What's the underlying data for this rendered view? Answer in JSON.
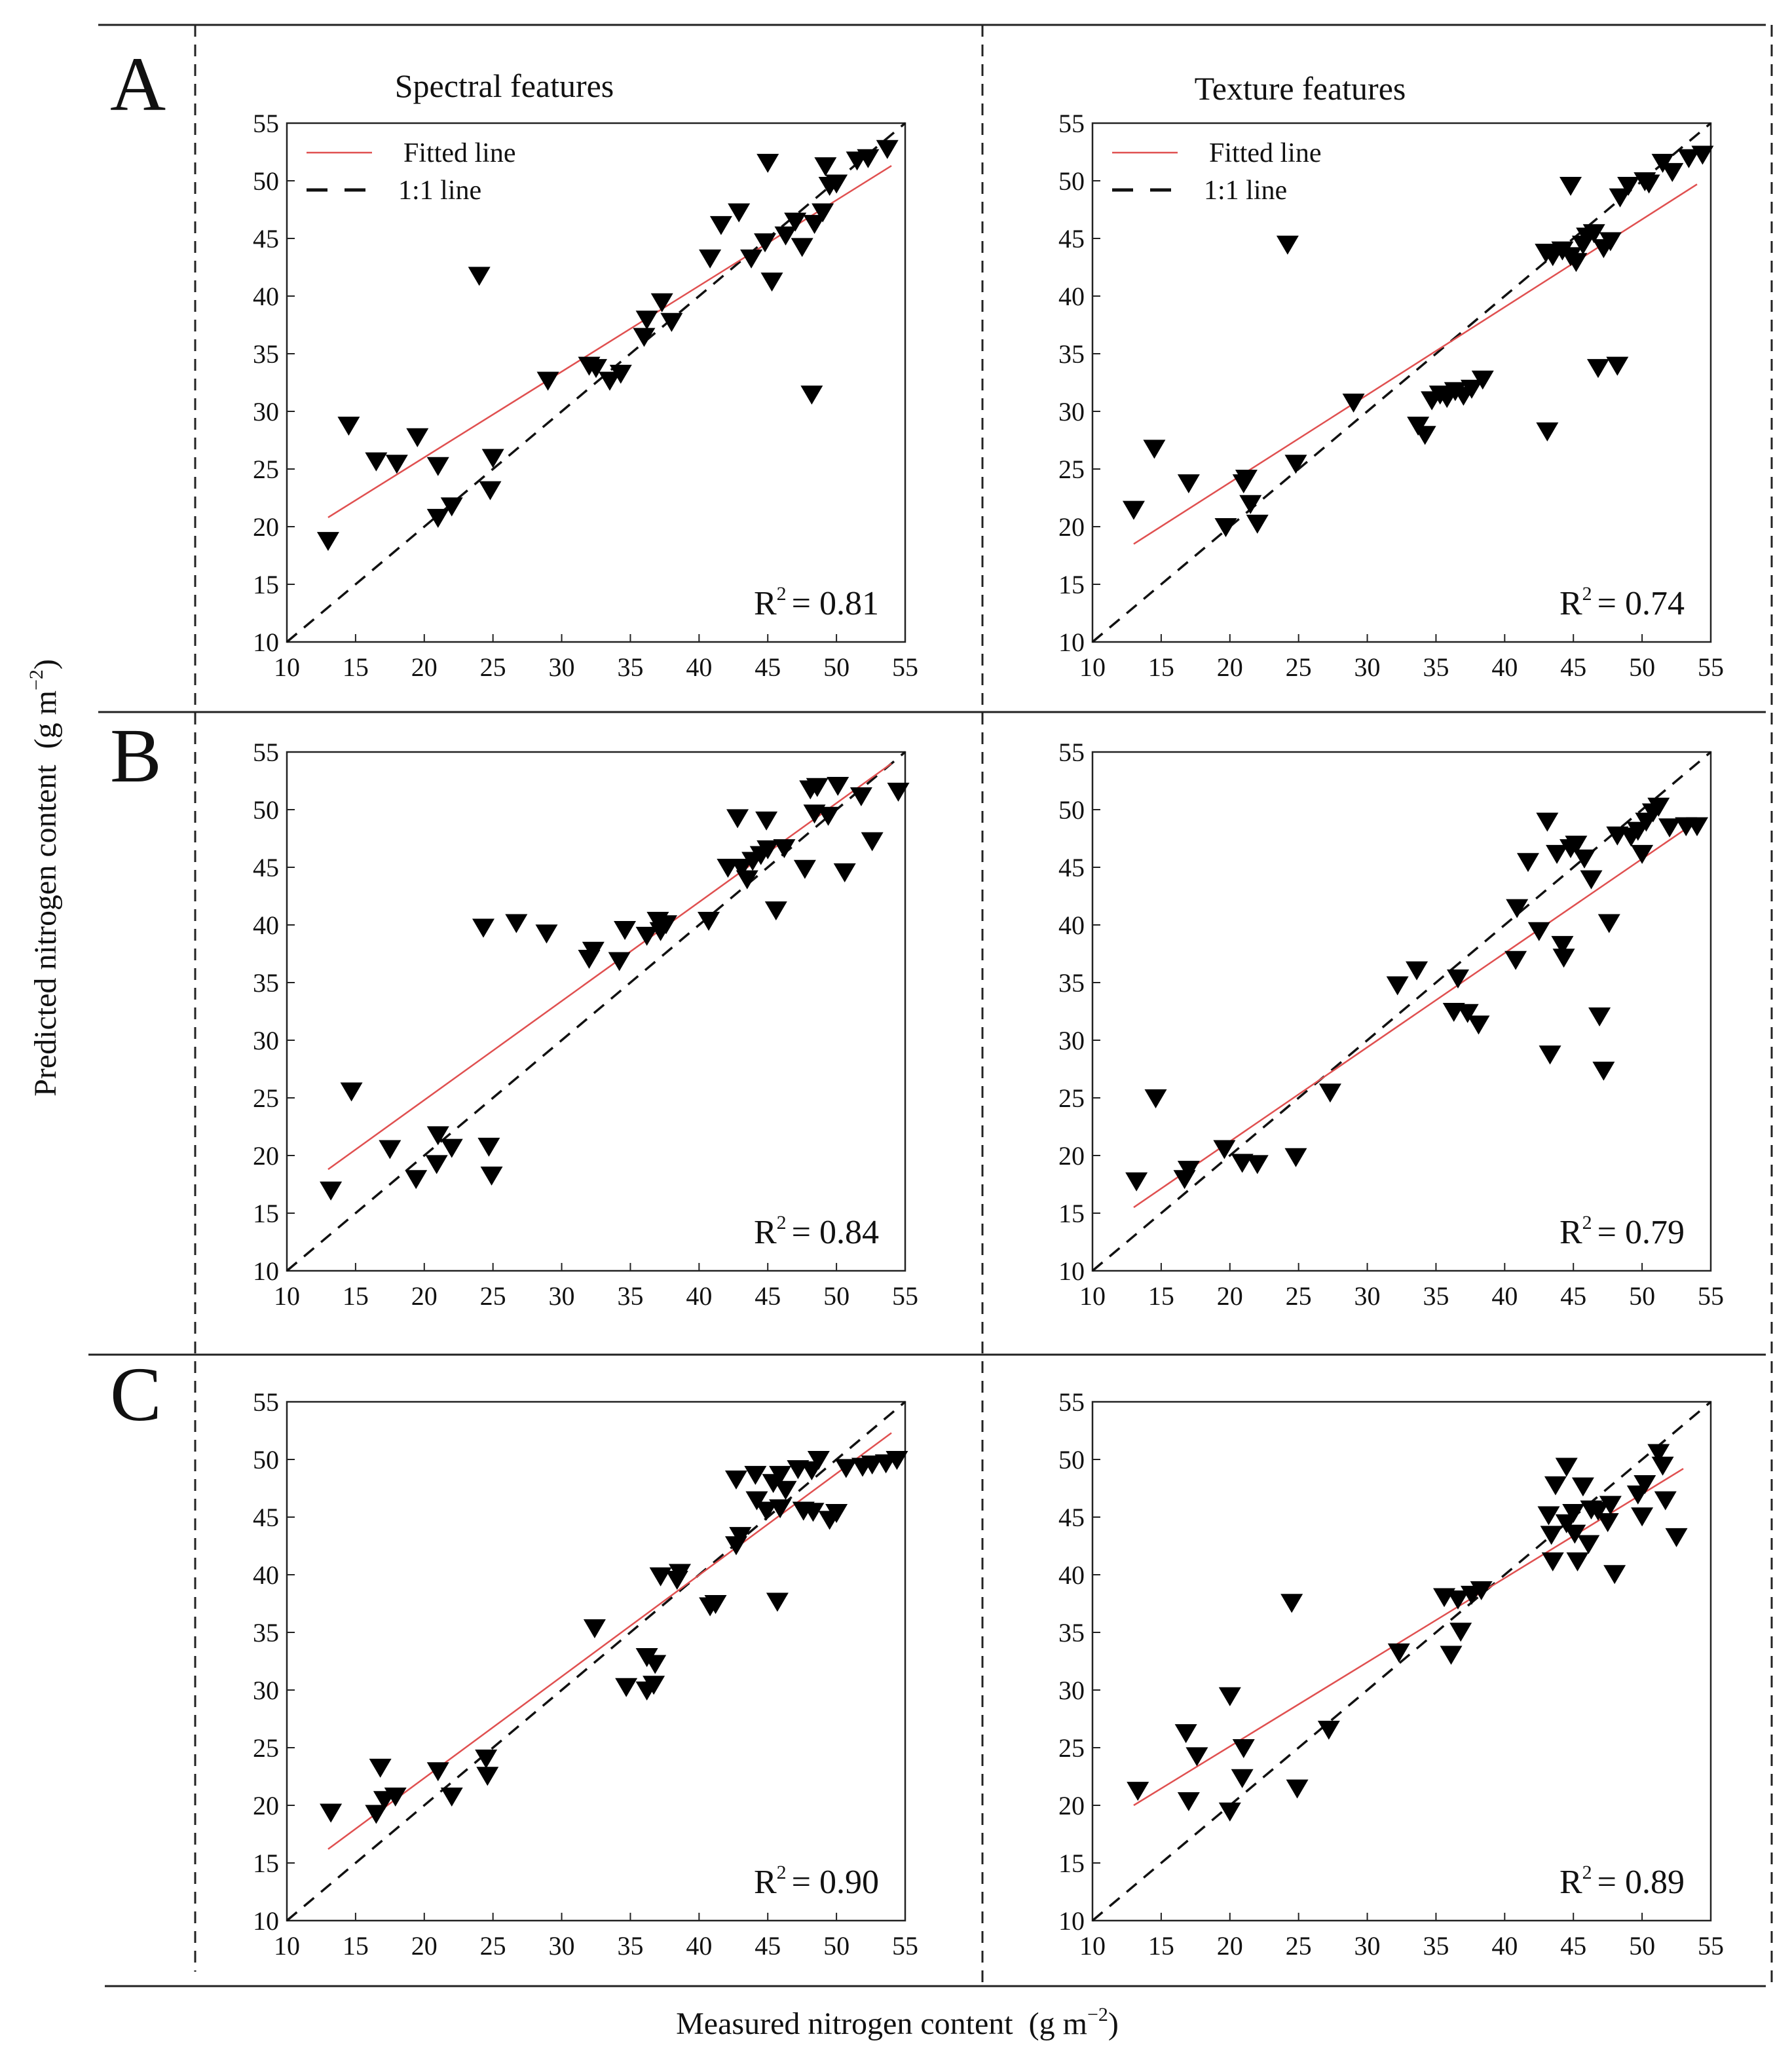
{
  "figure": {
    "ylabel": "Predicted nitrogen content",
    "ylabel_unit": "(g m",
    "ylabel_unit_exp": "−2",
    "ylabel_unit_close": ")",
    "xlabel": "Measured nitrogen content",
    "xlabel_unit": "(g m",
    "xlabel_unit_exp": "−2",
    "xlabel_unit_close": ")",
    "columns": [
      "Spectral features",
      "Texture features"
    ],
    "rows": [
      "A",
      "B",
      "C"
    ],
    "legend": {
      "fitted": "Fitted line",
      "identity": "1:1 line"
    },
    "colors": {
      "fitted_line": "#e05050",
      "identity_line": "#111111",
      "marker": "#000000"
    }
  },
  "chart_data": [
    {
      "type": "scatter",
      "row": "A",
      "column": "Spectral features",
      "xlim": [
        10,
        55
      ],
      "ylim": [
        10,
        55
      ],
      "ticks": [
        10,
        15,
        20,
        25,
        30,
        35,
        40,
        45,
        50,
        55
      ],
      "r2_label": "R",
      "r2_exp": "2",
      "r2_value": "= 0.81",
      "fitted_line": [
        [
          13,
          20.8
        ],
        [
          54,
          51.3
        ]
      ],
      "points": [
        [
          13,
          18.8
        ],
        [
          14.5,
          28.8
        ],
        [
          16.5,
          25.7
        ],
        [
          18,
          25.5
        ],
        [
          19.5,
          27.8
        ],
        [
          21,
          25.3
        ],
        [
          21,
          20.8
        ],
        [
          22,
          21.8
        ],
        [
          24,
          41.8
        ],
        [
          24.8,
          23.2
        ],
        [
          25,
          26
        ],
        [
          29,
          32.7
        ],
        [
          32,
          34
        ],
        [
          32.5,
          33.8
        ],
        [
          33.5,
          32.7
        ],
        [
          34.3,
          33.3
        ],
        [
          36,
          36.5
        ],
        [
          36.2,
          38
        ],
        [
          37.3,
          39.5
        ],
        [
          38,
          37.8
        ],
        [
          40.8,
          43.3
        ],
        [
          41.6,
          46.2
        ],
        [
          42.9,
          47.3
        ],
        [
          43.8,
          43.3
        ],
        [
          44.8,
          44.7
        ],
        [
          45,
          51.6
        ],
        [
          45.3,
          41.3
        ],
        [
          46.3,
          45.3
        ],
        [
          47,
          46.5
        ],
        [
          47.5,
          44.3
        ],
        [
          48.2,
          31.5
        ],
        [
          48.4,
          46.3
        ],
        [
          49,
          47.3
        ],
        [
          49.2,
          51.3
        ],
        [
          49.5,
          49.6
        ],
        [
          50,
          49.8
        ],
        [
          51.5,
          51.8
        ],
        [
          52.3,
          52
        ],
        [
          53.7,
          52.8
        ]
      ]
    },
    {
      "type": "scatter",
      "row": "A",
      "column": "Texture features",
      "xlim": [
        10,
        55
      ],
      "ylim": [
        10,
        55
      ],
      "ticks": [
        10,
        15,
        20,
        25,
        30,
        35,
        40,
        45,
        50,
        55
      ],
      "r2_label": "R",
      "r2_exp": "2",
      "r2_value": "= 0.74",
      "fitted_line": [
        [
          13,
          18.5
        ],
        [
          54,
          49.7
        ]
      ],
      "points": [
        [
          13,
          21.5
        ],
        [
          14.5,
          26.8
        ],
        [
          17,
          23.8
        ],
        [
          19.7,
          20
        ],
        [
          21,
          23.8
        ],
        [
          21.2,
          24.2
        ],
        [
          21.5,
          22
        ],
        [
          22,
          20.3
        ],
        [
          24.2,
          44.5
        ],
        [
          24.8,
          25.5
        ],
        [
          29,
          30.8
        ],
        [
          33.7,
          28.8
        ],
        [
          34.2,
          28
        ],
        [
          34.7,
          31
        ],
        [
          35.3,
          31.5
        ],
        [
          35.8,
          31.2
        ],
        [
          36.4,
          31.8
        ],
        [
          37,
          31.4
        ],
        [
          37.6,
          32
        ],
        [
          38.4,
          32.8
        ],
        [
          43.1,
          28.3
        ],
        [
          43,
          43.8
        ],
        [
          43.5,
          43.5
        ],
        [
          44.2,
          44
        ],
        [
          44.8,
          43.5
        ],
        [
          44.8,
          49.6
        ],
        [
          45.2,
          43
        ],
        [
          45.7,
          44.5
        ],
        [
          46,
          45.2
        ],
        [
          46.5,
          45.5
        ],
        [
          46.8,
          33.8
        ],
        [
          47.2,
          44.2
        ],
        [
          47.7,
          44.8
        ],
        [
          48.2,
          34
        ],
        [
          48.4,
          48.6
        ],
        [
          49,
          49.6
        ],
        [
          50.2,
          50
        ],
        [
          50.5,
          49.8
        ],
        [
          51.5,
          51.6
        ],
        [
          52.2,
          50.8
        ],
        [
          53.4,
          52
        ],
        [
          54.4,
          52.3
        ]
      ]
    },
    {
      "type": "scatter",
      "row": "B",
      "column": "Spectral features",
      "xlim": [
        10,
        55
      ],
      "ylim": [
        10,
        55
      ],
      "ticks": [
        10,
        15,
        20,
        25,
        30,
        35,
        40,
        45,
        50,
        55
      ],
      "r2_label": "R",
      "r2_exp": "2",
      "r2_value": "= 0.84",
      "fitted_line": [
        [
          13,
          18.8
        ],
        [
          54,
          54
        ]
      ],
      "points": [
        [
          13.2,
          17
        ],
        [
          14.7,
          25.6
        ],
        [
          17.5,
          20.6
        ],
        [
          19.4,
          18
        ],
        [
          20.9,
          19.3
        ],
        [
          21,
          21.8
        ],
        [
          22,
          20.7
        ],
        [
          24.3,
          39.8
        ],
        [
          24.7,
          20.8
        ],
        [
          24.9,
          18.3
        ],
        [
          26.7,
          40.2
        ],
        [
          28.9,
          39.3
        ],
        [
          32,
          37.1
        ],
        [
          32.3,
          37.8
        ],
        [
          34.2,
          36.9
        ],
        [
          34.6,
          39.6
        ],
        [
          36.2,
          39.1
        ],
        [
          37,
          40.4
        ],
        [
          37.2,
          39.5
        ],
        [
          37.6,
          40.1
        ],
        [
          40.7,
          40.4
        ],
        [
          42.1,
          45
        ],
        [
          42.8,
          49.3
        ],
        [
          43.1,
          45
        ],
        [
          43.5,
          44
        ],
        [
          43.9,
          45.6
        ],
        [
          44.5,
          46.1
        ],
        [
          44.9,
          49.1
        ],
        [
          45,
          46.6
        ],
        [
          45.6,
          41.3
        ],
        [
          46.2,
          46.7
        ],
        [
          47.7,
          44.9
        ],
        [
          48.1,
          51.8
        ],
        [
          48.4,
          49.7
        ],
        [
          48.6,
          52
        ],
        [
          49.4,
          49.5
        ],
        [
          50.1,
          52.1
        ],
        [
          50.6,
          44.6
        ],
        [
          51.8,
          51.2
        ],
        [
          52.6,
          47.3
        ],
        [
          54.5,
          51.6
        ]
      ]
    },
    {
      "type": "scatter",
      "row": "B",
      "column": "Texture features",
      "xlim": [
        10,
        55
      ],
      "ylim": [
        10,
        55
      ],
      "ticks": [
        10,
        15,
        20,
        25,
        30,
        35,
        40,
        45,
        50,
        55
      ],
      "r2_label": "R",
      "r2_exp": "2",
      "r2_value": "= 0.79",
      "fitted_line": [
        [
          13,
          15.5
        ],
        [
          54,
          49
        ]
      ],
      "points": [
        [
          13.2,
          17.8
        ],
        [
          14.6,
          25
        ],
        [
          16.7,
          18
        ],
        [
          17,
          18.8
        ],
        [
          19.6,
          20.6
        ],
        [
          20.9,
          19.4
        ],
        [
          22,
          19.3
        ],
        [
          24.8,
          19.9
        ],
        [
          27.3,
          25.5
        ],
        [
          32.2,
          34.8
        ],
        [
          33.6,
          36.1
        ],
        [
          36.3,
          32.5
        ],
        [
          36.6,
          35.4
        ],
        [
          37.3,
          32.4
        ],
        [
          38.1,
          31.4
        ],
        [
          40.8,
          37
        ],
        [
          40.9,
          41.5
        ],
        [
          41.7,
          45.5
        ],
        [
          42.5,
          39.5
        ],
        [
          43.1,
          49
        ],
        [
          43.3,
          28.8
        ],
        [
          43.8,
          46.2
        ],
        [
          44.2,
          38.3
        ],
        [
          44.3,
          37.2
        ],
        [
          44.8,
          46.7
        ],
        [
          45.2,
          47
        ],
        [
          45.8,
          45.8
        ],
        [
          46.3,
          44
        ],
        [
          46.9,
          32.1
        ],
        [
          47.2,
          27.4
        ],
        [
          47.6,
          40.2
        ],
        [
          48.2,
          47.8
        ],
        [
          49.2,
          47.7
        ],
        [
          49.7,
          48.2
        ],
        [
          50,
          46.2
        ],
        [
          50.3,
          49
        ],
        [
          50.8,
          49.8
        ],
        [
          51.2,
          50.3
        ],
        [
          52,
          48.5
        ],
        [
          53.2,
          48.6
        ],
        [
          54,
          48.6
        ]
      ]
    },
    {
      "type": "scatter",
      "row": "C",
      "column": "Spectral features",
      "xlim": [
        10,
        55
      ],
      "ylim": [
        10,
        55
      ],
      "ticks": [
        10,
        15,
        20,
        25,
        30,
        35,
        40,
        45,
        50,
        55
      ],
      "r2_label": "R",
      "r2_exp": "2",
      "r2_value": "= 0.90",
      "fitted_line": [
        [
          13,
          16.2
        ],
        [
          54,
          52.3
        ]
      ],
      "points": [
        [
          13.2,
          19.4
        ],
        [
          16.5,
          19.3
        ],
        [
          16.8,
          23.3
        ],
        [
          17.1,
          20.5
        ],
        [
          17.9,
          20.8
        ],
        [
          21,
          23
        ],
        [
          22,
          20.8
        ],
        [
          24.5,
          24.1
        ],
        [
          24.6,
          22.6
        ],
        [
          32.4,
          35.4
        ],
        [
          34.7,
          30.3
        ],
        [
          36.2,
          32.9
        ],
        [
          36.2,
          30
        ],
        [
          36.8,
          32.3
        ],
        [
          36.7,
          30.5
        ],
        [
          37.2,
          39.9
        ],
        [
          38.4,
          39.6
        ],
        [
          38.6,
          40.2
        ],
        [
          40.8,
          37.3
        ],
        [
          41.2,
          37.5
        ],
        [
          42.7,
          42.6
        ],
        [
          42.7,
          48.3
        ],
        [
          43,
          43.4
        ],
        [
          44.1,
          48.7
        ],
        [
          44.2,
          46.5
        ],
        [
          44.9,
          45.6
        ],
        [
          45.4,
          48
        ],
        [
          45.9,
          45.8
        ],
        [
          45.7,
          37.7
        ],
        [
          45.9,
          48.7
        ],
        [
          46.3,
          47.4
        ],
        [
          47.2,
          49.2
        ],
        [
          47.6,
          45.6
        ],
        [
          48.3,
          45.5
        ],
        [
          48.2,
          49.1
        ],
        [
          48.7,
          50
        ],
        [
          49.5,
          44.8
        ],
        [
          50,
          45.4
        ],
        [
          50.7,
          49.3
        ],
        [
          51.9,
          49.4
        ],
        [
          52.6,
          49.6
        ],
        [
          53.6,
          49.7
        ],
        [
          54.4,
          50
        ]
      ]
    },
    {
      "type": "scatter",
      "row": "C",
      "column": "Texture features",
      "xlim": [
        10,
        55
      ],
      "ylim": [
        10,
        55
      ],
      "ticks": [
        10,
        15,
        20,
        25,
        30,
        35,
        40,
        45,
        50,
        55
      ],
      "r2_label": "R",
      "r2_exp": "2",
      "r2_value": "= 0.89",
      "fitted_line": [
        [
          13,
          20
        ],
        [
          53,
          49.2
        ]
      ],
      "points": [
        [
          13.3,
          21.3
        ],
        [
          16.8,
          26.3
        ],
        [
          17,
          20.4
        ],
        [
          17.6,
          24.3
        ],
        [
          20,
          29.5
        ],
        [
          20,
          19.5
        ],
        [
          20.9,
          22.4
        ],
        [
          21,
          25
        ],
        [
          24.5,
          37.6
        ],
        [
          24.9,
          21.5
        ],
        [
          27.2,
          26.6
        ],
        [
          32.3,
          33.3
        ],
        [
          35.6,
          38.1
        ],
        [
          36.1,
          33.1
        ],
        [
          36.6,
          37.9
        ],
        [
          36.8,
          35.1
        ],
        [
          37.6,
          38.3
        ],
        [
          38.3,
          38.7
        ],
        [
          43.2,
          45.2
        ],
        [
          43.4,
          43.5
        ],
        [
          43.5,
          41.2
        ],
        [
          43.7,
          47.8
        ],
        [
          44.5,
          49.4
        ],
        [
          44.5,
          44.5
        ],
        [
          45,
          45.4
        ],
        [
          45.1,
          43.6
        ],
        [
          45.3,
          41.2
        ],
        [
          45.7,
          47.7
        ],
        [
          46.1,
          42.7
        ],
        [
          46.3,
          45.7
        ],
        [
          46.8,
          45.6
        ],
        [
          47.5,
          44.6
        ],
        [
          47.7,
          46.1
        ],
        [
          48,
          40.1
        ],
        [
          49.7,
          47
        ],
        [
          50,
          45.1
        ],
        [
          50.2,
          47.9
        ],
        [
          51.2,
          50.6
        ],
        [
          51.5,
          49.5
        ],
        [
          51.7,
          46.5
        ],
        [
          52.5,
          43.3
        ]
      ]
    }
  ]
}
